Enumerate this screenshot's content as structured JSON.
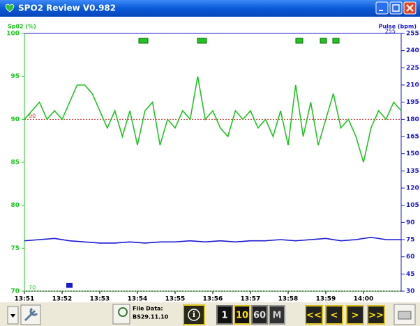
{
  "window": {
    "title": "SPO2 Review V0.982"
  },
  "chart_data": {
    "type": "line",
    "y_label": "Sp02 (%)",
    "y2_label": "Pulse (bpm)",
    "y2_top_label": "255",
    "xlim": [
      831,
      841
    ],
    "xticks": [
      {
        "value": 831,
        "label": "13:51"
      },
      {
        "value": 832,
        "label": "13:52"
      },
      {
        "value": 833,
        "label": "13:53"
      },
      {
        "value": 834,
        "label": "13:54"
      },
      {
        "value": 835,
        "label": "13:55"
      },
      {
        "value": 836,
        "label": "13:56"
      },
      {
        "value": 837,
        "label": "13:57"
      },
      {
        "value": 838,
        "label": "13:58"
      },
      {
        "value": 839,
        "label": "13:59"
      },
      {
        "value": 840,
        "label": "14:00"
      }
    ],
    "ylim": [
      70,
      100
    ],
    "yticks": [
      70,
      75,
      80,
      85,
      90,
      95,
      100
    ],
    "y2lim": [
      30,
      255
    ],
    "y2ticks": [
      30,
      45,
      60,
      75,
      90,
      105,
      120,
      135,
      150,
      165,
      180,
      195,
      210,
      225,
      240,
      255
    ],
    "reference_lines": [
      {
        "value": 90,
        "label": "90",
        "color": "#d03030"
      },
      {
        "value": 70,
        "label": "70",
        "color": "#22c322"
      }
    ],
    "series": [
      {
        "name": "SpO2",
        "color": "#22c322",
        "x": [
          831,
          831.2,
          831.4,
          831.6,
          831.8,
          832,
          832.2,
          832.4,
          832.6,
          832.8,
          833,
          833.2,
          833.4,
          833.6,
          833.8,
          834,
          834.2,
          834.4,
          834.6,
          834.8,
          835,
          835.2,
          835.4,
          835.6,
          835.8,
          836,
          836.2,
          836.4,
          836.6,
          836.8,
          837,
          837.2,
          837.4,
          837.6,
          837.8,
          838,
          838.2,
          838.4,
          838.6,
          838.8,
          839,
          839.2,
          839.4,
          839.6,
          839.8,
          840,
          840.2,
          840.4,
          840.6,
          840.8,
          841
        ],
        "values": [
          90,
          91,
          92,
          90,
          91,
          90,
          92,
          94,
          94,
          93,
          91,
          89,
          91,
          88,
          91,
          87,
          91,
          92,
          87,
          90,
          89,
          91,
          90,
          95,
          90,
          91,
          89,
          88,
          91,
          90,
          91,
          89,
          90,
          88,
          91,
          87,
          94,
          88,
          92,
          87,
          90,
          93,
          89,
          90,
          88,
          85,
          89,
          91,
          90,
          92,
          91
        ]
      },
      {
        "name": "Pulse",
        "color": "#1a1ad0",
        "axis": "y2",
        "x": [
          831,
          831.4,
          831.8,
          832.2,
          832.6,
          833,
          833.4,
          833.8,
          834.2,
          834.6,
          835,
          835.4,
          835.8,
          836.2,
          836.6,
          837,
          837.4,
          837.8,
          838.2,
          838.6,
          839,
          839.4,
          839.8,
          840.2,
          840.6,
          841
        ],
        "values": [
          74,
          75,
          76,
          74,
          73,
          72,
          72,
          73,
          72,
          73,
          73,
          74,
          73,
          74,
          73,
          74,
          74,
          75,
          74,
          75,
          76,
          74,
          75,
          77,
          75,
          75
        ]
      }
    ]
  },
  "toolbar": {
    "file_label": "File Data:",
    "file_name": "BS29.11.10",
    "buttons": [
      "1",
      "10",
      "60",
      "M",
      "<<",
      "<",
      ">",
      ">>"
    ]
  }
}
